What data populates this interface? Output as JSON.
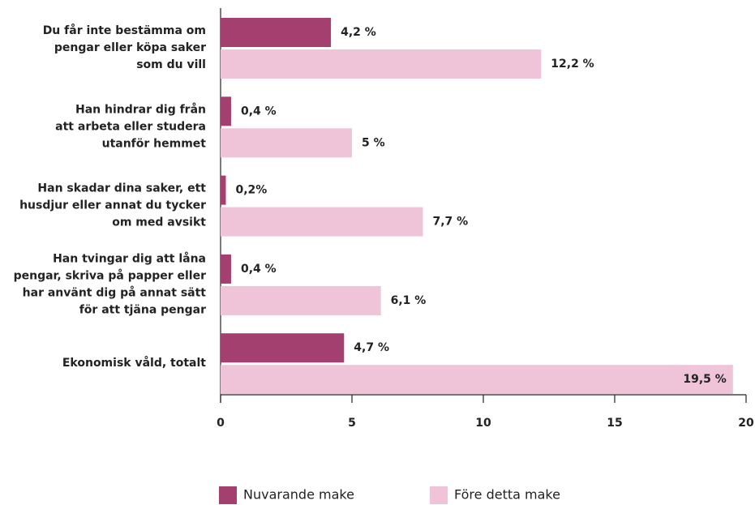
{
  "chart_data": {
    "type": "bar",
    "orientation": "horizontal",
    "categories": [
      [
        "Du får inte bestämma om",
        "pengar eller köpa saker",
        "som du vill"
      ],
      [
        "Han hindrar dig från",
        "att arbeta eller studera",
        "utanför hemmet"
      ],
      [
        "Han skadar dina saker, ett",
        "husdjur eller annat du tycker",
        "om med avsikt"
      ],
      [
        "Han tvingar dig att låna",
        "pengar, skriva på papper eller",
        "har använt dig på annat sätt",
        "för att tjäna pengar"
      ],
      [
        "Ekonomisk våld, totalt"
      ]
    ],
    "series": [
      {
        "name": "Nuvarande make",
        "color": "#a3406f",
        "values": [
          4.2,
          0.4,
          0.2,
          0.4,
          4.7
        ],
        "value_labels": [
          "4,2 %",
          "0,4 %",
          "0,2%",
          "0,4 %",
          "4,7 %"
        ]
      },
      {
        "name": "Före detta make",
        "color": "#efc3d8",
        "values": [
          12.2,
          5,
          7.7,
          6.1,
          19.5
        ],
        "value_labels": [
          "12,2 %",
          "5 %",
          "7,7 %",
          "6,1 %",
          "19,5 %"
        ]
      }
    ],
    "xlim": [
      0,
      20
    ],
    "xticks": [
      0,
      5,
      10,
      15,
      20
    ],
    "legend": "bottom"
  }
}
